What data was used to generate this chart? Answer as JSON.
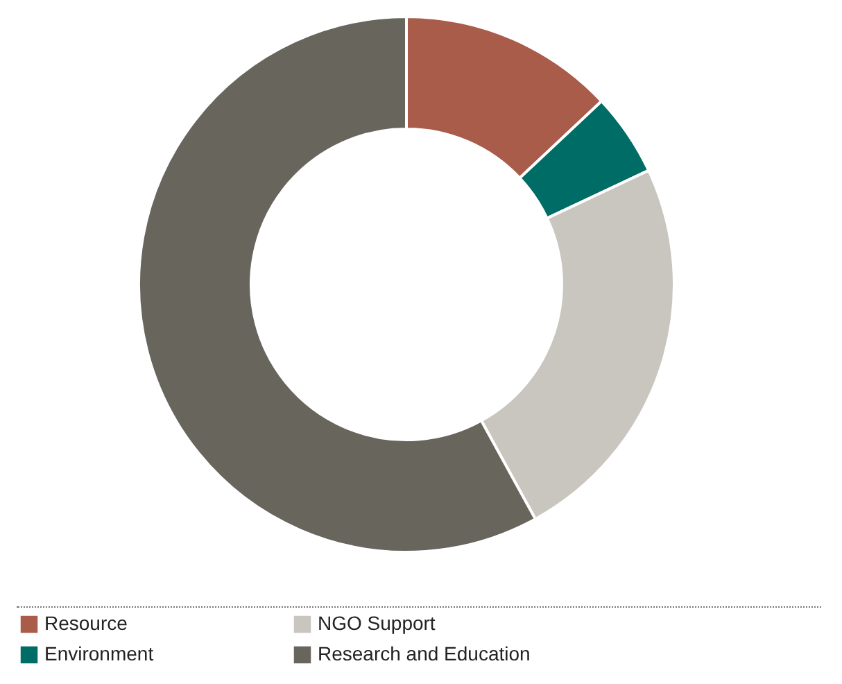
{
  "chart_data": {
    "type": "donut",
    "categories": [
      "Resource",
      "Environment",
      "NGO Support",
      "Research and Education"
    ],
    "values": [
      13,
      5,
      24,
      58
    ],
    "colors": [
      "#a95c4a",
      "#006c66",
      "#c8c6bf",
      "#67655c"
    ],
    "legend": "bottom"
  }
}
